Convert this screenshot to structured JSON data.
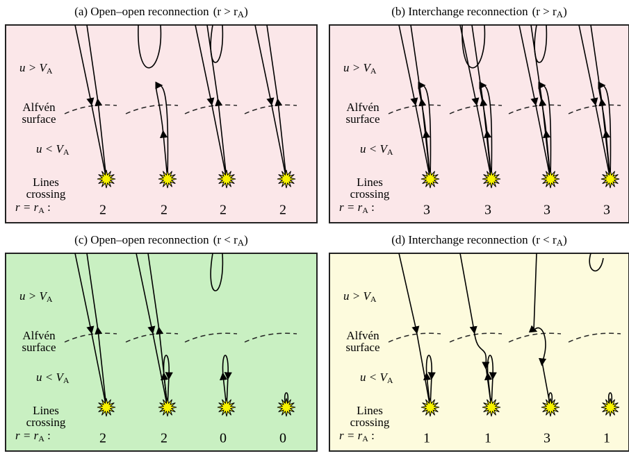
{
  "panels": [
    {
      "title": "(a)  Open–open reconnection",
      "condition": "(r > r",
      "condition_sub": "A",
      "condition_end": ")",
      "above": "u > V",
      "above_sub": "A",
      "surface_1": "Alfvén",
      "surface_2": "surface",
      "below": "u < V",
      "below_sub": "A",
      "crossing_1": "Lines",
      "crossing_2": "crossing",
      "crossing_3": "r = r",
      "crossing_3_sub": "A",
      "crossing_3_end": " :",
      "counts": [
        2,
        2,
        2,
        2
      ]
    },
    {
      "title": "(b)  Interchange reconnection",
      "condition": "(r > r",
      "condition_sub": "A",
      "condition_end": ")",
      "above": "u > V",
      "above_sub": "A",
      "surface_1": "Alfvén",
      "surface_2": "surface",
      "below": "u < V",
      "below_sub": "A",
      "crossing_1": "Lines",
      "crossing_2": "crossing",
      "crossing_3": "r = r",
      "crossing_3_sub": "A",
      "crossing_3_end": " :",
      "counts": [
        3,
        3,
        3,
        3
      ]
    },
    {
      "title": "(c)  Open–open reconnection",
      "condition": "(r < r",
      "condition_sub": "A",
      "condition_end": ")",
      "above": "u > V",
      "above_sub": "A",
      "surface_1": "Alfvén",
      "surface_2": "surface",
      "below": "u < V",
      "below_sub": "A",
      "crossing_1": "Lines",
      "crossing_2": "crossing",
      "crossing_3": "r = r",
      "crossing_3_sub": "A",
      "crossing_3_end": " :",
      "counts": [
        2,
        2,
        0,
        0
      ]
    },
    {
      "title": "(d)  Interchange reconnection",
      "condition": "(r < r",
      "condition_sub": "A",
      "condition_end": ")",
      "above": "u > V",
      "above_sub": "A",
      "surface_1": "Alfvén",
      "surface_2": "surface",
      "below": "u < V",
      "below_sub": "A",
      "crossing_1": "Lines",
      "crossing_2": "crossing",
      "crossing_3": "r = r",
      "crossing_3_sub": "A",
      "crossing_3_end": " :",
      "counts": [
        1,
        1,
        3,
        1
      ]
    }
  ]
}
